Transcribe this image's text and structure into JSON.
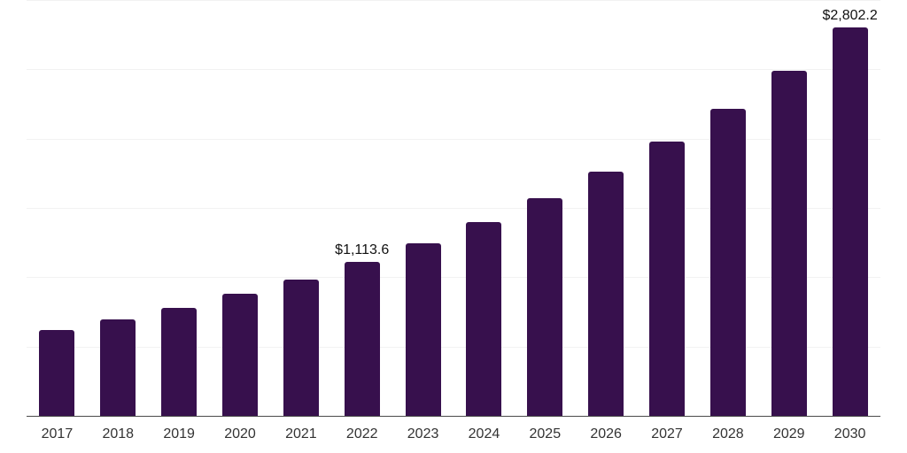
{
  "chart_data": {
    "type": "bar",
    "title": "",
    "xlabel": "",
    "ylabel": "",
    "categories": [
      "2017",
      "2018",
      "2019",
      "2020",
      "2021",
      "2022",
      "2023",
      "2024",
      "2025",
      "2026",
      "2027",
      "2028",
      "2029",
      "2030"
    ],
    "values": [
      620,
      695,
      782,
      880,
      985,
      1113.6,
      1245,
      1397,
      1568,
      1765,
      1976,
      2217,
      2490,
      2802.2
    ],
    "data_labels": {
      "2022": "$1,113.6",
      "2030": "$2,802.2"
    },
    "ylim": [
      0,
      3000
    ],
    "gridline_step": 500,
    "grid": "horizontal",
    "legend": "none",
    "colors": {
      "bar": "#37104D",
      "axis_line": "#4a4a4a",
      "gridline": "#f2f2f2",
      "data_label": "#111111",
      "tick_label": "#333333",
      "background": "#ffffff"
    }
  }
}
